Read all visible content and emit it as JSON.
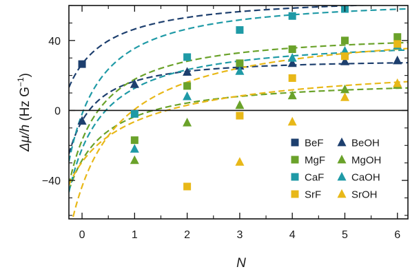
{
  "chart_data": {
    "type": "scatter",
    "xlabel": "N",
    "ylabel": {
      "main": "Δμ/h",
      "unit_open": " (Hz G",
      "unit_sup": "−1",
      "unit_close": ")"
    },
    "xlim": [
      -0.25,
      6.2
    ],
    "ylim": [
      -62,
      60
    ],
    "x_ticks": [
      0,
      1,
      2,
      3,
      4,
      5,
      6
    ],
    "y_ticks": [
      -40,
      0,
      40
    ],
    "y_minor_step": 10,
    "grid": false,
    "zero_line": true,
    "legend_position": "bottom-right",
    "colors": {
      "Be": "#1d3f6e",
      "Mg": "#6aa22a",
      "Ca": "#1f9aa6",
      "Sr": "#e8b818"
    },
    "legend": [
      {
        "name": "BeF",
        "marker": "square",
        "element": "Be"
      },
      {
        "name": "BeOH",
        "marker": "triangle",
        "element": "Be"
      },
      {
        "name": "MgF",
        "marker": "square",
        "element": "Mg"
      },
      {
        "name": "MgOH",
        "marker": "triangle",
        "element": "Mg"
      },
      {
        "name": "CaF",
        "marker": "square",
        "element": "Ca"
      },
      {
        "name": "CaOH",
        "marker": "triangle",
        "element": "Ca"
      },
      {
        "name": "SrF",
        "marker": "square",
        "element": "Sr"
      },
      {
        "name": "SrOH",
        "marker": "triangle",
        "element": "Sr"
      }
    ],
    "series": [
      {
        "name": "BeF",
        "element": "Be",
        "marker": "square",
        "points": [
          [
            0,
            26.5
          ]
        ],
        "fit": {
          "A": 66.5,
          "B": 40,
          "C": 1.0
        }
      },
      {
        "name": "BeOH",
        "element": "Be",
        "marker": "triangle",
        "points": [
          [
            0,
            -6
          ],
          [
            1,
            15
          ],
          [
            2,
            22
          ],
          [
            3,
            25.5
          ],
          [
            4,
            27
          ],
          [
            5,
            28
          ],
          [
            6,
            28.5
          ]
        ],
        "fit": {
          "A": 29.1,
          "B": 35.1,
          "C": 1.5
        }
      },
      {
        "name": "MgF",
        "element": "Mg",
        "marker": "square",
        "points": [
          [
            1,
            -17
          ],
          [
            2,
            14
          ],
          [
            3,
            27
          ],
          [
            4,
            35
          ],
          [
            5,
            40
          ],
          [
            6,
            42
          ]
        ],
        "fit": {
          "A": 44.6,
          "B": 61.6,
          "C": 1.2
        }
      },
      {
        "name": "MgOH",
        "element": "Mg",
        "marker": "triangle",
        "points": [
          [
            1,
            -28.5
          ],
          [
            2,
            -7
          ],
          [
            3,
            3
          ],
          [
            4,
            8.5
          ],
          [
            5,
            12
          ],
          [
            6,
            14.5
          ]
        ],
        "fit": {
          "A": 18.2,
          "B": 46.7,
          "C": 1.1
        }
      },
      {
        "name": "CaF",
        "element": "Ca",
        "marker": "square",
        "points": [
          [
            1,
            -2
          ],
          [
            2,
            30.5
          ],
          [
            3,
            46
          ],
          [
            4,
            54
          ],
          [
            5,
            58
          ]
        ],
        "fit": {
          "A": 64.3,
          "B": 66.3,
          "C": 1.2
        }
      },
      {
        "name": "CaOH",
        "element": "Ca",
        "marker": "triangle",
        "points": [
          [
            1,
            -22
          ],
          [
            2,
            8
          ],
          [
            3,
            22.5
          ],
          [
            4,
            30
          ],
          [
            5,
            34
          ],
          [
            6,
            37
          ]
        ],
        "fit": {
          "A": 41.1,
          "B": 63.1,
          "C": 1.15
        }
      },
      {
        "name": "SrF",
        "element": "Sr",
        "marker": "square",
        "points": [
          [
            2,
            -43.5
          ],
          [
            3,
            -3
          ],
          [
            4,
            18.5
          ],
          [
            5,
            31
          ],
          [
            6,
            38
          ]
        ],
        "fit": {
          "A": 51.5,
          "B": 95.0,
          "C": 0.9
        }
      },
      {
        "name": "SrOH",
        "element": "Sr",
        "marker": "triangle",
        "points": [
          [
            3,
            -29.5
          ],
          [
            4,
            -6.5
          ],
          [
            5,
            7.5
          ],
          [
            6,
            15.5
          ]
        ],
        "fit": {
          "A": 34.1,
          "B": 63.6,
          "C": 0.65
        }
      }
    ]
  }
}
